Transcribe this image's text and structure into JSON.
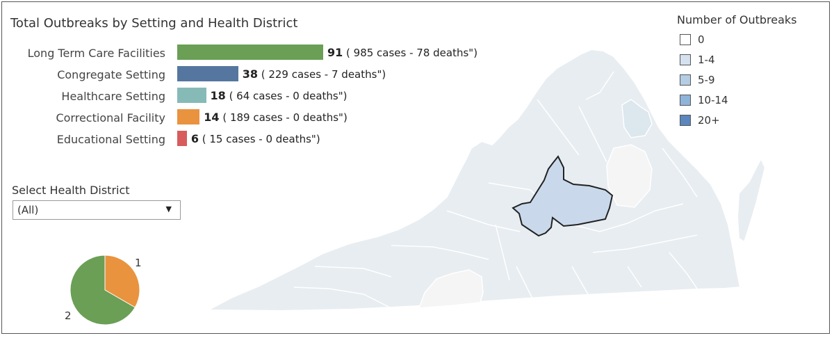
{
  "chart_data": [
    {
      "type": "bar",
      "title": "Total Outbreaks by Setting and Health District",
      "categories": [
        "Long Term Care Facilities",
        "Congregate Setting",
        "Healthcare Setting",
        "Correctional Facility",
        "Educational Setting"
      ],
      "values": [
        91,
        38,
        18,
        14,
        6
      ],
      "annotations": [
        "( 985 cases -  78 deaths\")",
        "( 229 cases -  7 deaths\")",
        "( 64 cases -  0 deaths\")",
        "( 189 cases -  0 deaths\")",
        "( 15 cases -  0 deaths\")"
      ],
      "colors": [
        "#6a9f55",
        "#55779f",
        "#86bab7",
        "#e9933f",
        "#d85c5c"
      ],
      "orientation": "horizontal"
    },
    {
      "type": "pie",
      "values": [
        1,
        2
      ],
      "labels": [
        "1",
        "2"
      ],
      "colors": [
        "#e9933f",
        "#6a9f55"
      ]
    }
  ],
  "map": {
    "legend_title": "Number of Outbreaks",
    "legend": [
      {
        "label": "0",
        "color": "#ffffff"
      },
      {
        "label": "1-4",
        "color": "#d5e1ef"
      },
      {
        "label": "5-9",
        "color": "#b4cde4"
      },
      {
        "label": "10-14",
        "color": "#8fb4da"
      },
      {
        "label": "20+",
        "color": "#5b86be"
      }
    ],
    "colors": {
      "base": "#e8edf1",
      "highlight": "#c9d9eb",
      "light": "#f5f5f5",
      "mid": "#dde7ee"
    }
  },
  "filter": {
    "label": "Select Health District",
    "value": "(All)",
    "arrow": "▼"
  }
}
